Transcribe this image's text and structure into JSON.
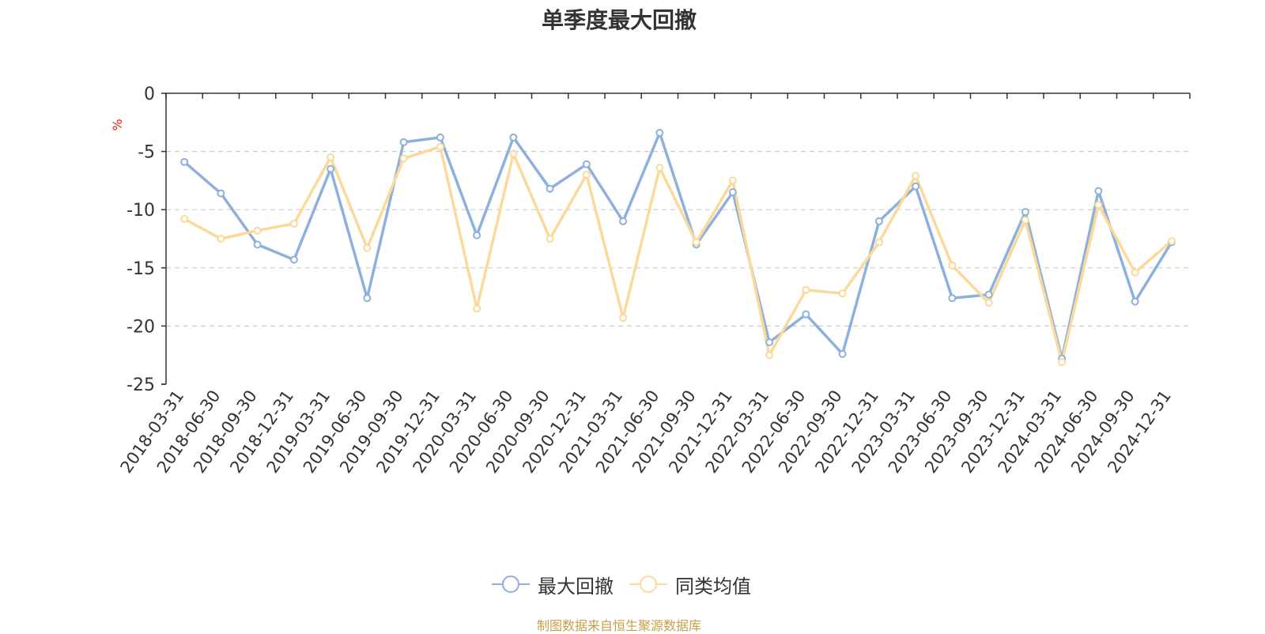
{
  "chart_data": {
    "type": "line",
    "title": "单季度最大回撤",
    "ylabel": "%",
    "ylim": [
      -25,
      0
    ],
    "yticks": [
      0,
      -5,
      -10,
      -15,
      -20,
      -25
    ],
    "grid": true,
    "legend_position": "bottom",
    "categories": [
      "2018-03-31",
      "2018-06-30",
      "2018-09-30",
      "2018-12-31",
      "2019-03-31",
      "2019-06-30",
      "2019-09-30",
      "2019-12-31",
      "2020-03-31",
      "2020-06-30",
      "2020-09-30",
      "2020-12-31",
      "2021-03-31",
      "2021-06-30",
      "2021-09-30",
      "2021-12-31",
      "2022-03-31",
      "2022-06-30",
      "2022-09-30",
      "2022-12-31",
      "2023-03-31",
      "2023-06-30",
      "2023-09-30",
      "2023-12-31",
      "2024-03-31",
      "2024-06-30",
      "2024-09-30",
      "2024-12-31"
    ],
    "series": [
      {
        "name": "最大回撤",
        "color": "#8eb0dc",
        "values": [
          -5.9,
          -8.6,
          -13.0,
          -14.3,
          -6.5,
          -17.6,
          -4.2,
          -3.8,
          -12.2,
          -3.8,
          -8.2,
          -6.1,
          -11.0,
          -3.4,
          -13.0,
          -8.5,
          -21.4,
          -19.0,
          -22.4,
          -11.0,
          -8.0,
          -17.6,
          -17.3,
          -10.2,
          -22.8,
          -8.4,
          -17.9,
          -12.8
        ]
      },
      {
        "name": "同类均值",
        "color": "#fbd99a",
        "values": [
          -10.8,
          -12.5,
          -11.8,
          -11.2,
          -5.5,
          -13.3,
          -5.6,
          -4.6,
          -18.5,
          -5.2,
          -12.5,
          -7.0,
          -19.3,
          -6.4,
          -12.8,
          -7.5,
          -22.5,
          -16.9,
          -17.2,
          -12.8,
          -7.1,
          -14.8,
          -18.0,
          -10.9,
          -23.1,
          -9.6,
          -15.4,
          -12.7
        ]
      }
    ]
  },
  "footer": {
    "source": "制图数据来自恒生聚源数据库"
  }
}
